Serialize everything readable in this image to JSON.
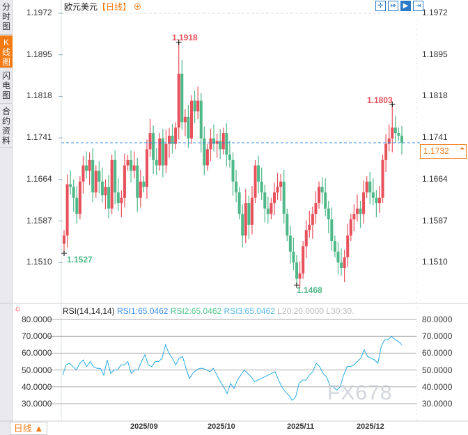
{
  "sidebar": {
    "tabs": [
      {
        "label": "分时图"
      },
      {
        "label": "K线图",
        "active": true
      },
      {
        "label": "闪电图"
      },
      {
        "label": "合约资料"
      }
    ]
  },
  "header": {
    "symbol": "欧元美元",
    "period": "【日线】",
    "add_icon": "circle-plus-icon",
    "tools": [
      "crosshair-icon",
      "fit-range-icon",
      "scroll-icon",
      "jump-latest-icon"
    ]
  },
  "price_axis": {
    "ticks": [
      "1.1972",
      "1.1895",
      "1.1818",
      "1.1741",
      "1.1664",
      "1.1587",
      "1.1510"
    ]
  },
  "current_price": "1.1732",
  "annotations": {
    "high1": "1.1918",
    "high2": "1.1803",
    "low1": "1.1527",
    "low2": "1.1468"
  },
  "colors": {
    "up": "#e8505b",
    "down": "#4fb888",
    "price_line": "#1e7ee8",
    "accent": "#f57a12",
    "rsi": "#29a9e0"
  },
  "candles": {
    "first_open": 1.1545,
    "close": [
      1.156,
      1.1655,
      1.165,
      1.163,
      1.16,
      1.166,
      1.169,
      1.168,
      1.17,
      1.164,
      1.168,
      1.166,
      1.1635,
      1.165,
      1.161,
      1.17,
      1.164,
      1.162,
      1.163,
      1.169,
      1.17,
      1.168,
      1.169,
      1.163,
      1.166,
      1.165,
      1.172,
      1.175,
      1.17,
      1.169,
      1.174,
      1.169,
      1.173,
      1.1745,
      1.173,
      1.176,
      1.186,
      1.177,
      1.178,
      1.174,
      1.181,
      1.179,
      1.181,
      1.174,
      1.169,
      1.172,
      1.174,
      1.173,
      1.1735,
      1.172,
      1.175,
      1.171,
      1.17,
      1.166,
      1.164,
      1.16,
      1.156,
      1.162,
      1.158,
      1.163,
      1.169,
      1.166,
      1.164,
      1.161,
      1.16,
      1.162,
      1.164,
      1.165,
      1.166,
      1.16,
      1.156,
      1.153,
      1.151,
      1.148,
      1.149,
      1.154,
      1.157,
      1.158,
      1.16,
      1.162,
      1.165,
      1.164,
      1.161,
      1.159,
      1.155,
      1.153,
      1.151,
      1.15,
      1.152,
      1.156,
      1.159,
      1.16,
      1.161,
      1.16,
      1.164,
      1.166,
      1.164,
      1.163,
      1.162,
      1.163,
      1.17,
      1.173,
      1.174,
      1.176,
      1.175,
      1.1745,
      1.1732
    ]
  },
  "rsi": {
    "header": "RSI(14,14,14)",
    "rsi1": "RSI1:65.0462",
    "rsi2": "RSI2:65.0462",
    "rsi3": "RSI3:65.0462",
    "l20": "L20:20.0000",
    "l30": "L30:30.",
    "ticks": [
      "80.0000",
      "70.0000",
      "60.0000",
      "50.0000",
      "40.0000",
      "30.0000"
    ],
    "values": [
      47,
      53,
      54,
      52,
      50,
      54,
      56,
      52,
      55,
      52,
      51,
      51,
      47,
      56,
      48,
      50,
      50,
      53,
      53,
      55,
      48,
      50,
      50,
      55,
      59,
      53,
      52,
      55,
      55,
      57,
      65,
      60,
      57,
      53,
      57,
      58,
      51,
      45,
      48,
      50,
      51,
      51,
      50,
      49,
      51,
      47,
      43,
      40,
      36,
      42,
      39,
      44,
      47,
      50,
      48,
      46,
      43,
      44,
      45,
      46,
      47,
      48,
      49,
      44,
      40,
      37,
      35,
      32,
      34,
      42,
      44,
      44,
      47,
      49,
      54,
      52,
      48,
      46,
      41,
      40,
      38,
      40,
      47,
      52,
      52,
      53,
      55,
      57,
      62,
      58,
      57,
      56,
      54,
      64,
      68,
      68,
      70,
      68,
      67,
      65
    ],
    "settings_icon": "sun-gear-icon"
  },
  "dates": [
    "2025/09",
    "2025/10",
    "2025/11",
    "2025/12"
  ],
  "period_button": "日线 ▲",
  "watermark": "FX678"
}
